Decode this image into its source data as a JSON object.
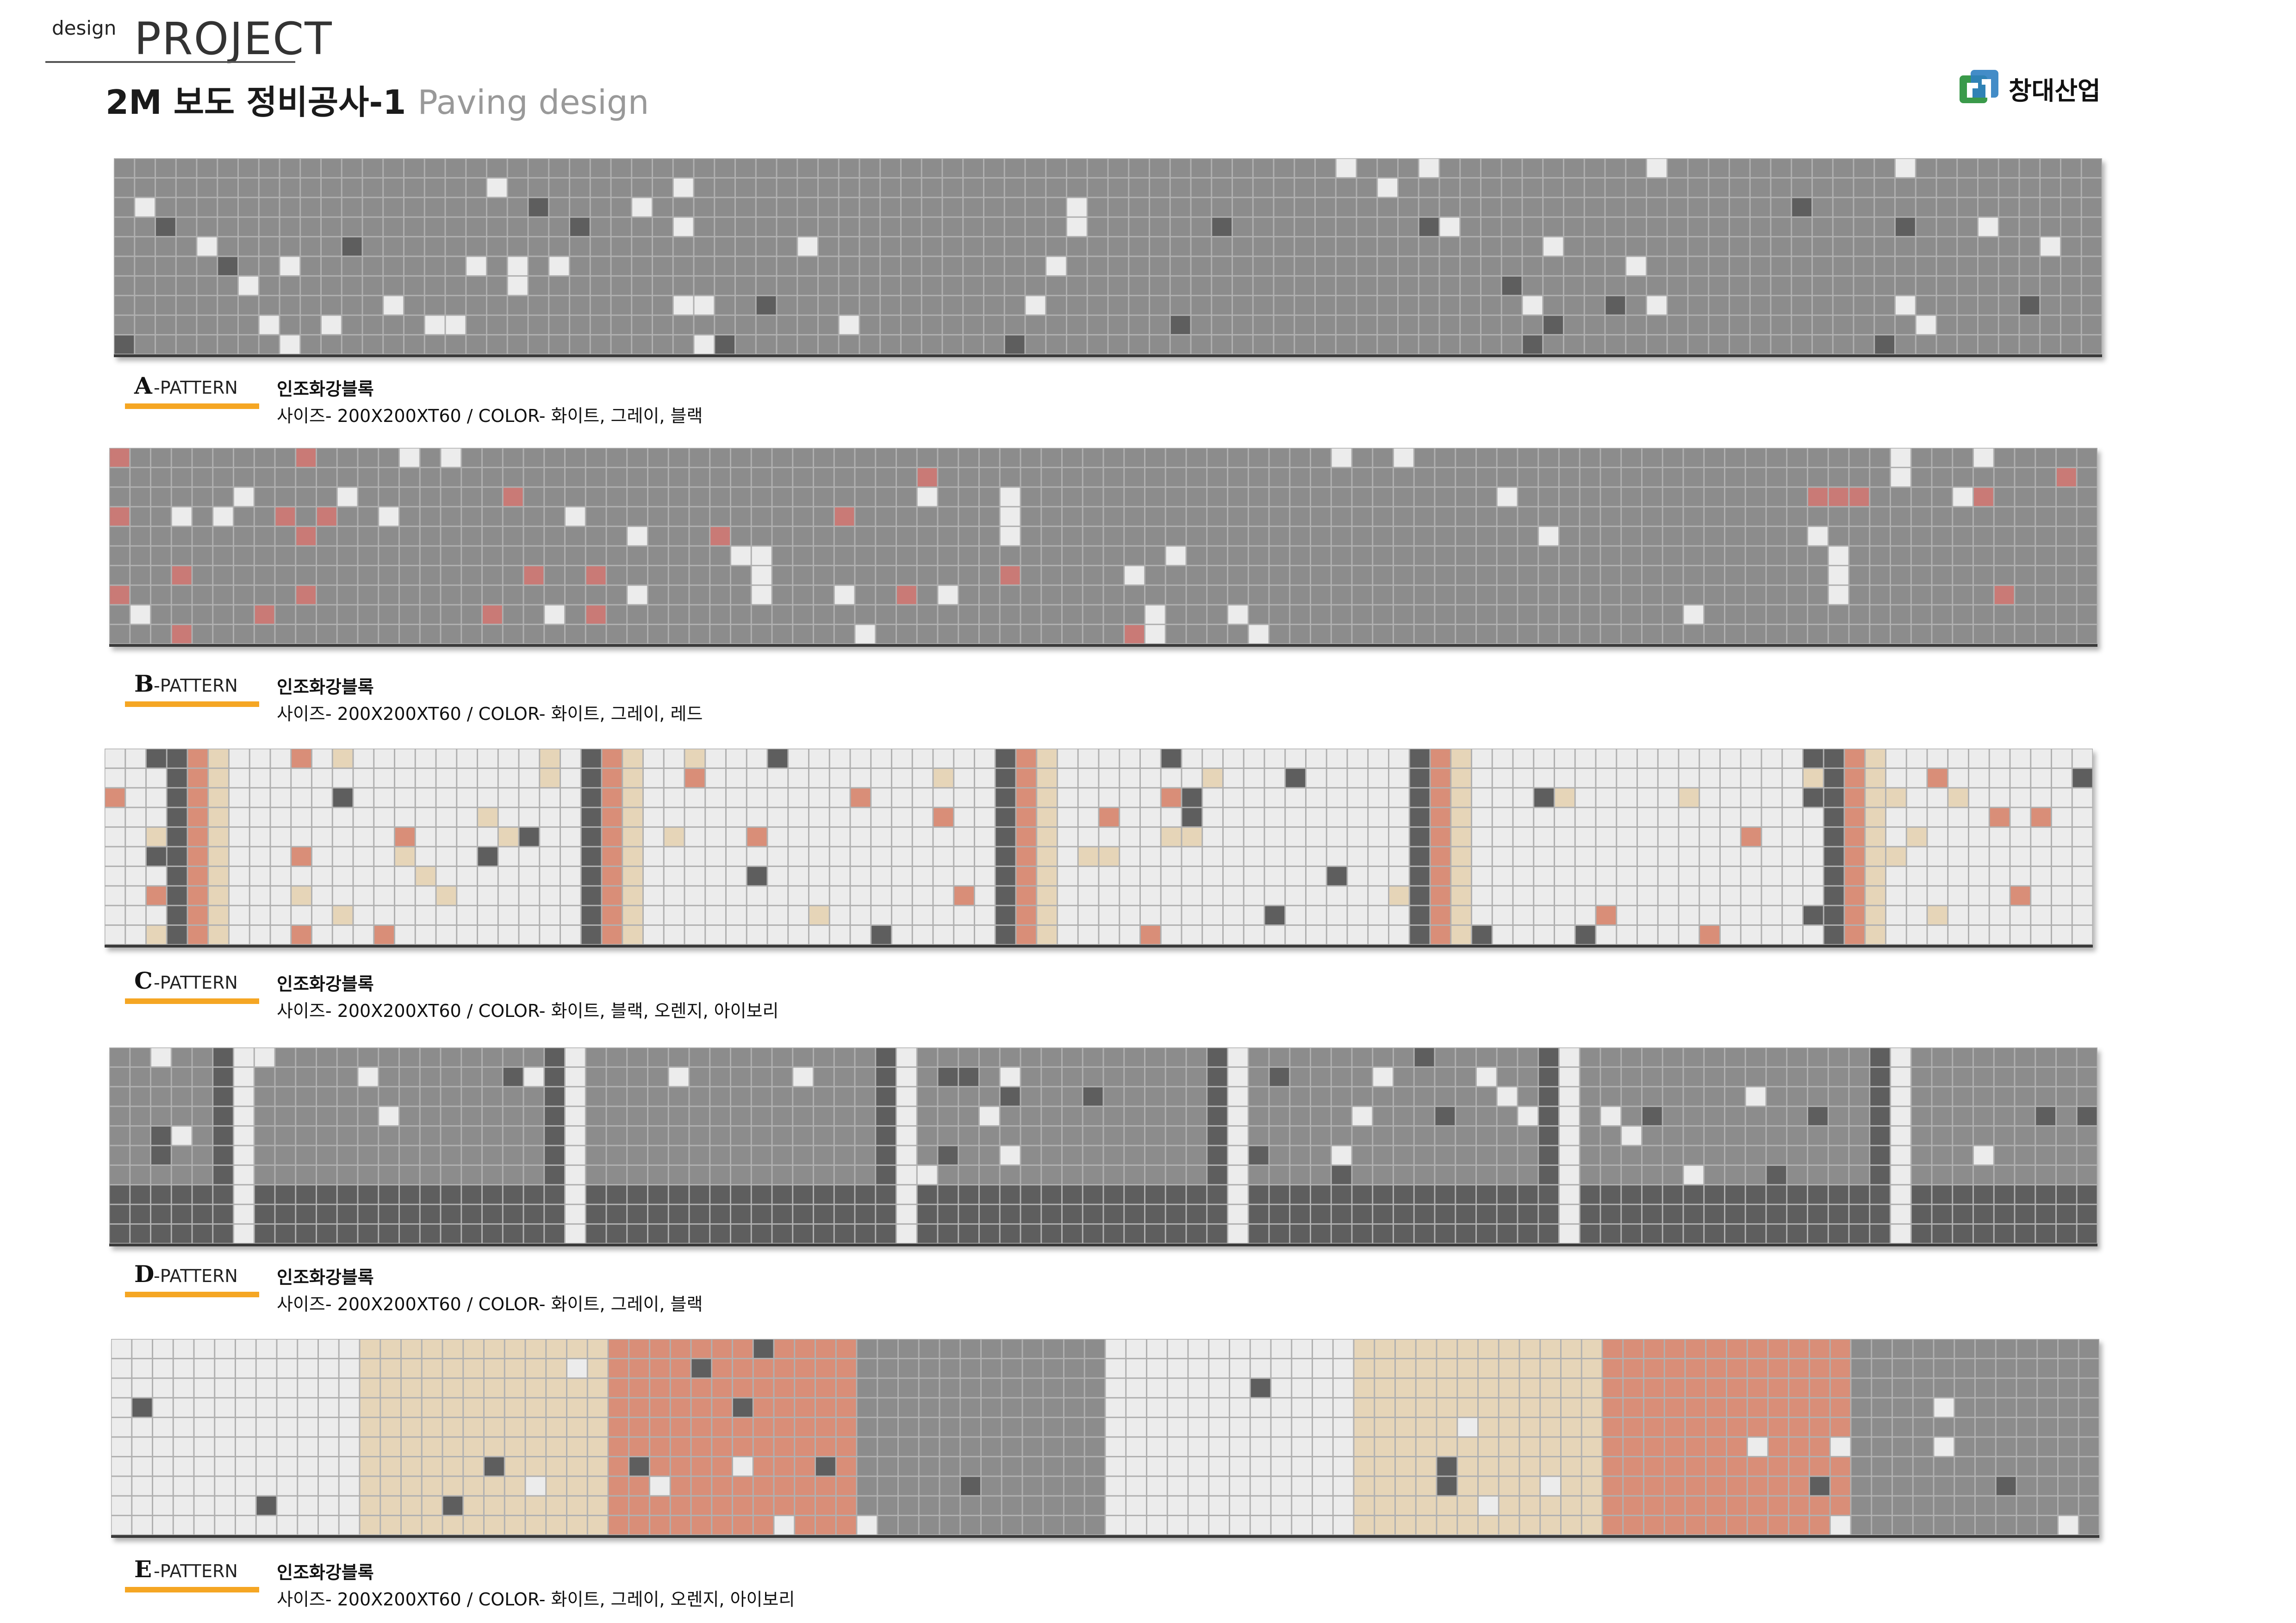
{
  "header": {
    "brand_small": "design",
    "brand_big": "PROJECT",
    "title_main": "2M 보도 정비공사-1",
    "title_accent": "Paving design",
    "company": "창대산업"
  },
  "colors": {
    "gray": "#8c8c8c",
    "dark": "#5e5e5e",
    "white": "#ececec",
    "red": "#c97a76",
    "orange": "#d98e78",
    "ivory": "#e6d5b8",
    "grout": "#b0b0b0",
    "accent_bar": "#f5a623"
  },
  "patterns": [
    {
      "id": "A",
      "suffix": "-PATTERN",
      "material": "인조화강블록",
      "spec": "사이즈- 200X200XT60 / COLOR- 화이트, 그레이, 블랙",
      "colors": [
        "white",
        "gray",
        "black"
      ]
    },
    {
      "id": "B",
      "suffix": "-PATTERN",
      "material": "인조화강블록",
      "spec": "사이즈- 200X200XT60 / COLOR- 화이트, 그레이, 레드",
      "colors": [
        "white",
        "gray",
        "red"
      ]
    },
    {
      "id": "C",
      "suffix": "-PATTERN",
      "material": "인조화강블록",
      "spec": "사이즈- 200X200XT60 / COLOR- 화이트, 블랙, 오렌지, 아이보리",
      "colors": [
        "white",
        "black",
        "orange",
        "ivory"
      ]
    },
    {
      "id": "D",
      "suffix": "-PATTERN",
      "material": "인조화강블록",
      "spec": "사이즈- 200X200XT60 / COLOR- 화이트, 그레이, 블랙",
      "colors": [
        "white",
        "gray",
        "black"
      ]
    },
    {
      "id": "E",
      "suffix": "-PATTERN",
      "material": "인조화강블록",
      "spec": "사이즈- 200X200XT60 / COLOR- 화이트, 그레이, 오렌지, 아이보리",
      "colors": [
        "white",
        "gray",
        "orange",
        "ivory"
      ]
    }
  ]
}
